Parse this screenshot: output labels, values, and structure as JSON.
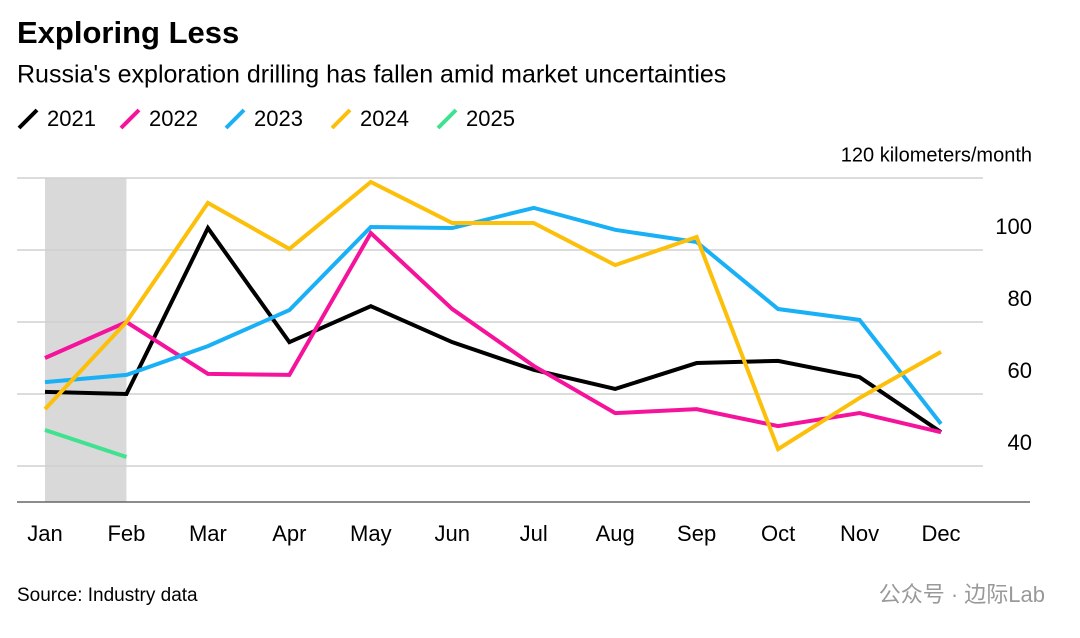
{
  "chart_data": {
    "type": "line",
    "title": "Exploring Less",
    "subtitle": "Russia's exploration drilling has fallen amid market uncertainties",
    "source": "Source: Industry data",
    "watermark": "公众号 · 边际Lab",
    "categories": [
      "Jan",
      "Feb",
      "Mar",
      "Apr",
      "May",
      "Jun",
      "Jul",
      "Aug",
      "Sep",
      "Oct",
      "Nov",
      "Dec"
    ],
    "series": [
      {
        "name": "2021",
        "color": "#000000",
        "values": [
          60.6,
          60,
          106.1,
          74.4,
          84.4,
          74.4,
          66.7,
          61.4,
          68.6,
          69.2,
          64.7,
          49.4
        ]
      },
      {
        "name": "2022",
        "color": "#f5139b",
        "values": [
          70,
          80,
          65.6,
          65.3,
          104.7,
          83.6,
          67.8,
          54.7,
          55.8,
          51.1,
          54.7,
          49.4
        ]
      },
      {
        "name": "2023",
        "color": "#1ab0f5",
        "values": [
          63.3,
          65.3,
          73.3,
          83.3,
          106.4,
          106.1,
          111.7,
          105.6,
          102.2,
          83.6,
          80.6,
          51.7
        ]
      },
      {
        "name": "2024",
        "color": "#fcbf0a",
        "values": [
          55.8,
          80,
          113.1,
          100.3,
          118.9,
          107.5,
          107.5,
          95.8,
          103.6,
          44.7,
          58.9,
          71.7
        ]
      },
      {
        "name": "2025",
        "color": "#3ee28f",
        "values": [
          50,
          42.5,
          null,
          null,
          null,
          null,
          null,
          null,
          null,
          null,
          null,
          null
        ]
      }
    ],
    "ylim": [
      30,
      120
    ],
    "yticks": [
      40,
      60,
      80,
      100,
      {
        "value": 120,
        "label": "120 kilometers/month"
      }
    ],
    "grid": true
  }
}
